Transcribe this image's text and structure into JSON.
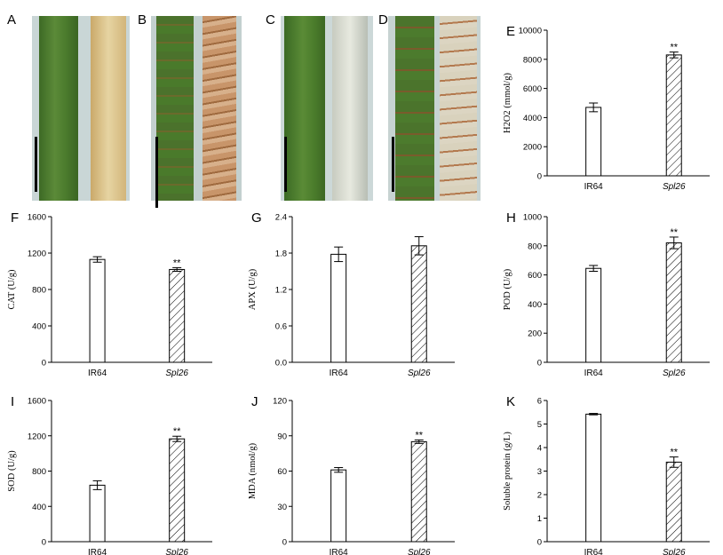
{
  "panels": {
    "photos": [
      {
        "letter": "A"
      },
      {
        "letter": "B"
      },
      {
        "letter": "C"
      },
      {
        "letter": "D"
      }
    ],
    "colors": {
      "photo_bg": "#c9d6d6",
      "leaf_green": "#4d7a2f",
      "leaf_green_dark": "#3e6a25",
      "leaf_yellow": "#d8c48d",
      "leaf_brown_spotted": "#b88a5a",
      "leaf_white": "#d9dcd0",
      "scale_bar": "#000000"
    }
  },
  "chart_data": [
    {
      "id": "E",
      "letter": "E",
      "type": "bar",
      "categories": [
        "IR64",
        "Spl26"
      ],
      "values": [
        4700,
        8300
      ],
      "errors": [
        300,
        200
      ],
      "ylabel": "H2O2 (mmol/g)",
      "ylim": [
        0,
        10000
      ],
      "yticks": [
        "0",
        "2000",
        "4000",
        "6000",
        "8000",
        "10000"
      ],
      "significance": [
        "",
        "**"
      ]
    },
    {
      "id": "F",
      "letter": "F",
      "type": "bar",
      "categories": [
        "IR64",
        "Spl26"
      ],
      "values": [
        1130,
        1020
      ],
      "errors": [
        30,
        20
      ],
      "ylabel": "CAT (U/g)",
      "ylim": [
        0,
        1600
      ],
      "yticks": [
        "0",
        "400",
        "800",
        "1200",
        "1600"
      ],
      "significance": [
        "",
        "**"
      ]
    },
    {
      "id": "G",
      "letter": "G",
      "type": "bar",
      "categories": [
        "IR64",
        "Spl26"
      ],
      "values": [
        1.78,
        1.92
      ],
      "errors": [
        0.12,
        0.15
      ],
      "ylabel": "APX (U/g)",
      "ylim": [
        0,
        2.4
      ],
      "yticks": [
        "0.0",
        "0.6",
        "1.2",
        "1.8",
        "2.4"
      ],
      "significance": [
        "",
        ""
      ]
    },
    {
      "id": "H",
      "letter": "H",
      "type": "bar",
      "categories": [
        "IR64",
        "Spl26"
      ],
      "values": [
        645,
        820
      ],
      "errors": [
        20,
        40
      ],
      "ylabel": "POD (U/g)",
      "ylim": [
        0,
        1000
      ],
      "yticks": [
        "0",
        "200",
        "400",
        "600",
        "800",
        "1000"
      ],
      "significance": [
        "",
        "**"
      ]
    },
    {
      "id": "I",
      "letter": "I",
      "type": "bar",
      "categories": [
        "IR64",
        "Spl26"
      ],
      "values": [
        640,
        1165
      ],
      "errors": [
        50,
        30
      ],
      "ylabel": "SOD (U/g)",
      "ylim": [
        0,
        1600
      ],
      "yticks": [
        "0",
        "400",
        "800",
        "1200",
        "1600"
      ],
      "significance": [
        "",
        "**"
      ]
    },
    {
      "id": "J",
      "letter": "J",
      "type": "bar",
      "categories": [
        "IR64",
        "Spl26"
      ],
      "values": [
        61,
        85
      ],
      "errors": [
        2,
        1.5
      ],
      "ylabel": "MDA (nmol/g)",
      "ylim": [
        0,
        120
      ],
      "yticks": [
        "0",
        "30",
        "60",
        "90",
        "120"
      ],
      "significance": [
        "",
        "**"
      ]
    },
    {
      "id": "K",
      "letter": "K",
      "type": "bar",
      "categories": [
        "IR64",
        "Spl26"
      ],
      "values": [
        5.42,
        3.38
      ],
      "errors": [
        0.03,
        0.22
      ],
      "ylabel": "Soluble protein (g/L)",
      "ylim": [
        0,
        6
      ],
      "yticks": [
        "0",
        "1",
        "2",
        "3",
        "4",
        "5",
        "6"
      ],
      "significance": [
        "",
        "**"
      ]
    }
  ]
}
